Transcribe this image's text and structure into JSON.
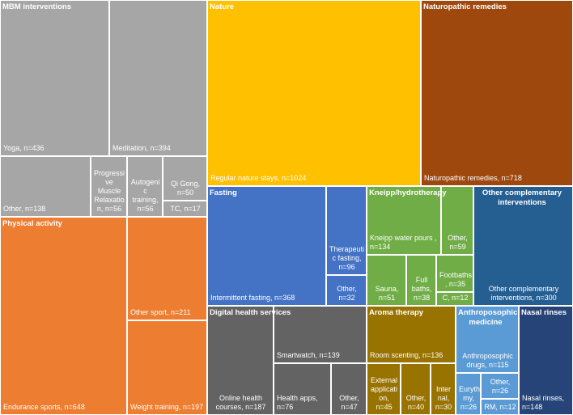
{
  "chart_data": {
    "type": "treemap",
    "title": "",
    "groups": [
      {
        "name": "MBM interventions",
        "color": "#a6a6a6",
        "items": [
          {
            "label": "Yoga, n=436",
            "value": 436
          },
          {
            "label": "Meditation, n=394",
            "value": 394
          },
          {
            "label": "Other, n=138",
            "value": 138
          },
          {
            "label": "Progressive Muscle Relaxation, n=56",
            "value": 56
          },
          {
            "label": "Autogenic training, n=56",
            "value": 56
          },
          {
            "label": "Qi Gong, n=50",
            "value": 50
          },
          {
            "label": "TC, n=17",
            "value": 17
          }
        ]
      },
      {
        "name": "Nature",
        "color": "#ffc000",
        "items": [
          {
            "label": "Regular nature stays, n=1024",
            "value": 1024
          }
        ]
      },
      {
        "name": "Naturopathic remedies",
        "color": "#9e480e",
        "items": [
          {
            "label": "Naturopathic remedies, n=718",
            "value": 718
          }
        ]
      },
      {
        "name": "Physical activity",
        "color": "#ed7d31",
        "items": [
          {
            "label": "Endurance sports, n=648",
            "value": 648
          },
          {
            "label": "Other sport, n=211",
            "value": 211
          },
          {
            "label": "Weight training, n=197",
            "value": 197
          }
        ]
      },
      {
        "name": "Fasting",
        "color": "#4472c4",
        "items": [
          {
            "label": "Intermittent fasting, n=368",
            "value": 368
          },
          {
            "label": "Therapeutic fasting, n=96",
            "value": 96
          },
          {
            "label": "Other, n=32",
            "value": 32
          }
        ]
      },
      {
        "name": "Kneipp/hydrotherapy",
        "color": "#70ad47",
        "items": [
          {
            "label": "Kneipp water pours , n=134",
            "value": 134
          },
          {
            "label": "Other, n=59",
            "value": 59
          },
          {
            "label": "Sauna, n=51",
            "value": 51
          },
          {
            "label": "Full baths, n=38",
            "value": 38
          },
          {
            "label": "Footbaths, n=35",
            "value": 35
          },
          {
            "label": "C, n=12",
            "value": 12
          }
        ]
      },
      {
        "name": "Other complementary interventions",
        "color": "#255e91",
        "items": [
          {
            "label": "Other complementary interventions, n=300",
            "value": 300
          }
        ]
      },
      {
        "name": "Digital health services",
        "color": "#636363",
        "items": [
          {
            "label": "Online health courses, n=187",
            "value": 187
          },
          {
            "label": "Smartwatch, n=139",
            "value": 139
          },
          {
            "label": "Health apps, n=76",
            "value": 76
          },
          {
            "label": "Other, n=47",
            "value": 47
          }
        ]
      },
      {
        "name": "Aroma therapy",
        "color": "#997300",
        "items": [
          {
            "label": "Room scenting, n=136",
            "value": 136
          },
          {
            "label": "External application, n=45",
            "value": 45
          },
          {
            "label": "Other, n=40",
            "value": 40
          },
          {
            "label": "Internal, n=30",
            "value": 30
          }
        ]
      },
      {
        "name": "Anthroposophic medicine",
        "color": "#5b9bd5",
        "items": [
          {
            "label": "Anthroposophic drugs, n=115",
            "value": 115
          },
          {
            "label": "Eurythmy, n=26",
            "value": 26
          },
          {
            "label": "Other, n=26",
            "value": 26
          },
          {
            "label": "RM, n=12",
            "value": 12
          }
        ]
      },
      {
        "name": "Nasal rinses",
        "color": "#264478",
        "items": [
          {
            "label": "Nasal rinses, n=148",
            "value": 148
          }
        ]
      }
    ]
  },
  "tiles": [
    {
      "id": "mbm-yoga",
      "group": 0,
      "item": 0,
      "display": "Yoga, n=436"
    },
    {
      "id": "mbm-meditation",
      "group": 0,
      "item": 1,
      "display": "Meditation, n=394"
    },
    {
      "id": "mbm-other",
      "group": 0,
      "item": 2,
      "display": "Other, n=138"
    },
    {
      "id": "mbm-pmr",
      "group": 0,
      "item": 3,
      "display": "Progressi\nve\nMuscle\nRelaxatio\nn, n=56"
    },
    {
      "id": "mbm-autogenic",
      "group": 0,
      "item": 4,
      "display": "Autogeni\nc training,\nn=56"
    },
    {
      "id": "mbm-qigong",
      "group": 0,
      "item": 5,
      "display": "Qi Gong,\nn=50"
    },
    {
      "id": "mbm-tc",
      "group": 0,
      "item": 6,
      "display": "TC, n=17"
    },
    {
      "id": "nature-regular",
      "group": 1,
      "item": 0,
      "display": "Regular nature stays, n=1024"
    },
    {
      "id": "naturo-remedies",
      "group": 2,
      "item": 0,
      "display": "Naturopathic remedies, n=718"
    },
    {
      "id": "physical-endurance",
      "group": 3,
      "item": 0,
      "display": "Endurance sports, n=648"
    },
    {
      "id": "physical-other",
      "group": 3,
      "item": 1,
      "display": "Other sport, n=211"
    },
    {
      "id": "physical-weight",
      "group": 3,
      "item": 2,
      "display": "Weight training, n=197"
    },
    {
      "id": "fasting-intermittent",
      "group": 4,
      "item": 0,
      "display": "Intermittent fasting, n=368"
    },
    {
      "id": "fasting-therapeutic",
      "group": 4,
      "item": 1,
      "display": "Therapeuti\nc fasting,\nn=96"
    },
    {
      "id": "fasting-other",
      "group": 4,
      "item": 2,
      "display": "Other,\nn=32"
    },
    {
      "id": "kneipp-pours",
      "group": 5,
      "item": 0,
      "display": "Kneipp water pours ,\nn=134"
    },
    {
      "id": "kneipp-other",
      "group": 5,
      "item": 1,
      "display": "Other,\nn=59"
    },
    {
      "id": "kneipp-sauna",
      "group": 5,
      "item": 2,
      "display": "Sauna,\nn=51"
    },
    {
      "id": "kneipp-fullbaths",
      "group": 5,
      "item": 3,
      "display": "Full\nbaths,\nn=38"
    },
    {
      "id": "kneipp-footbaths",
      "group": 5,
      "item": 4,
      "display": "Footbaths\n, n=35"
    },
    {
      "id": "kneipp-c",
      "group": 5,
      "item": 5,
      "display": "C, n=12"
    },
    {
      "id": "other-comp",
      "group": 6,
      "item": 0,
      "display": "Other complementary\ninterventions, n=300"
    },
    {
      "id": "digital-online",
      "group": 7,
      "item": 0,
      "display": "Online health\ncourses, n=187"
    },
    {
      "id": "digital-smartwatch",
      "group": 7,
      "item": 1,
      "display": "Smartwatch, n=139"
    },
    {
      "id": "digital-apps",
      "group": 7,
      "item": 2,
      "display": "Health apps,\nn=76"
    },
    {
      "id": "digital-other",
      "group": 7,
      "item": 3,
      "display": "Other,\nn=47"
    },
    {
      "id": "aroma-room",
      "group": 8,
      "item": 0,
      "display": "Room scenting, n=136"
    },
    {
      "id": "aroma-external",
      "group": 8,
      "item": 1,
      "display": "External\napplicati\non, n=45"
    },
    {
      "id": "aroma-other",
      "group": 8,
      "item": 2,
      "display": "Other,\nn=40"
    },
    {
      "id": "aroma-internal",
      "group": 8,
      "item": 3,
      "display": "Inter\nnal,\nn=30"
    },
    {
      "id": "anthro-drugs",
      "group": 9,
      "item": 0,
      "display": "Anthroposophic\ndrugs, n=115"
    },
    {
      "id": "anthro-eurythmy",
      "group": 9,
      "item": 1,
      "display": "Euryth\nmy,\nn=26"
    },
    {
      "id": "anthro-other",
      "group": 9,
      "item": 2,
      "display": "Other,\nn=26"
    },
    {
      "id": "anthro-rm",
      "group": 9,
      "item": 3,
      "display": "RM, n=12"
    },
    {
      "id": "nasal-rinses",
      "group": 10,
      "item": 0,
      "display": "Nasal rinses,\nn=148"
    }
  ],
  "category_headers": [
    {
      "id": "mbm",
      "group": 0,
      "display": "MBM interventions"
    },
    {
      "id": "nature",
      "group": 1,
      "display": "Nature"
    },
    {
      "id": "naturo",
      "group": 2,
      "display": "Naturopathic remedies"
    },
    {
      "id": "physical",
      "group": 3,
      "display": "Physical activity"
    },
    {
      "id": "fasting",
      "group": 4,
      "display": "Fasting"
    },
    {
      "id": "kneipp",
      "group": 5,
      "display": "Kneipp/hydrotherapy"
    },
    {
      "id": "othercomp",
      "group": 6,
      "display": "Other complementary\ninterventions"
    },
    {
      "id": "digital",
      "group": 7,
      "display": "Digital health services"
    },
    {
      "id": "aroma",
      "group": 8,
      "display": "Aroma therapy"
    },
    {
      "id": "anthro",
      "group": 9,
      "display": "Anthroposophic\nmedicine"
    },
    {
      "id": "nasal",
      "group": 10,
      "display": "Nasal rinses"
    }
  ]
}
